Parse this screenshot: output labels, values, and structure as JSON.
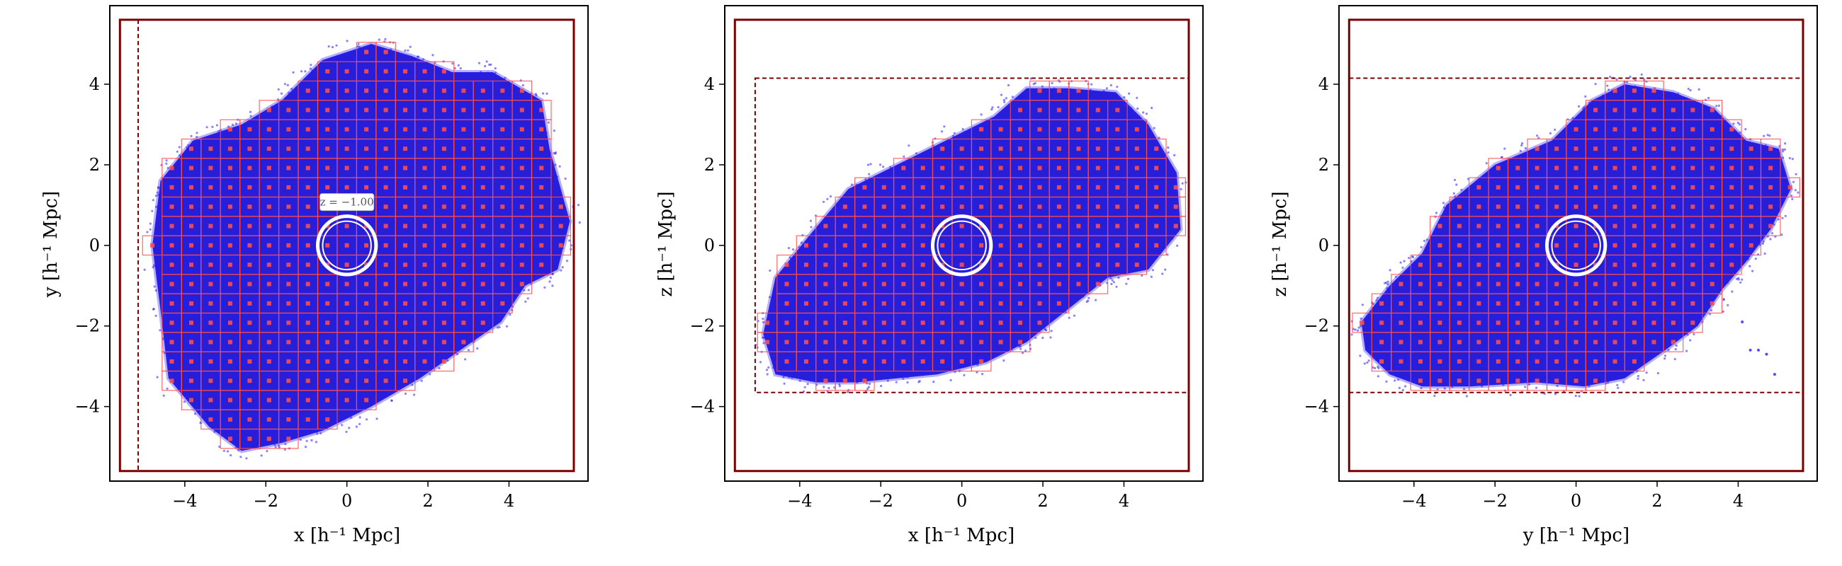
{
  "chart_data": [
    {
      "type": "scatter",
      "xlabel": "x [h⁻¹ Mpc]",
      "ylabel": "y [h⁻¹ Mpc]",
      "xlim": [
        -5.85,
        5.95
      ],
      "ylim": [
        -5.85,
        5.95
      ],
      "xticks": [
        -4,
        -2,
        0,
        2,
        4
      ],
      "yticks": [
        -4,
        -2,
        0,
        2,
        4
      ],
      "xtick_labels": [
        "−4",
        "−2",
        "0",
        "2",
        "4"
      ],
      "ytick_labels": [
        "−4",
        "−2",
        "0",
        "2",
        "4"
      ],
      "outer_box": [
        -5.6,
        5.6,
        -5.6,
        5.6
      ],
      "dashed_line": {
        "orientation": "vertical",
        "at": -5.15
      },
      "circle": {
        "center": [
          0,
          0
        ],
        "radius": 0.72
      },
      "annotation": {
        "text": "z = −1.00",
        "at": [
          0,
          0.9
        ]
      },
      "cloud": {
        "grid_cell": 0.48,
        "outline": [
          [
            -4.6,
            1.6
          ],
          [
            -3.8,
            2.6
          ],
          [
            -2.6,
            3.0
          ],
          [
            -1.6,
            3.6
          ],
          [
            -0.6,
            4.6
          ],
          [
            0.6,
            5.0
          ],
          [
            1.6,
            4.7
          ],
          [
            2.6,
            4.3
          ],
          [
            3.6,
            4.3
          ],
          [
            4.8,
            3.6
          ],
          [
            5.0,
            2.4
          ],
          [
            5.5,
            0.6
          ],
          [
            5.2,
            -0.6
          ],
          [
            4.4,
            -1.0
          ],
          [
            3.8,
            -1.9
          ],
          [
            2.8,
            -2.6
          ],
          [
            1.8,
            -3.3
          ],
          [
            0.6,
            -4.0
          ],
          [
            -0.6,
            -4.6
          ],
          [
            -1.6,
            -4.9
          ],
          [
            -2.6,
            -5.1
          ],
          [
            -3.4,
            -4.5
          ],
          [
            -4.4,
            -3.3
          ],
          [
            -4.6,
            -1.6
          ],
          [
            -4.8,
            0.0
          ]
        ]
      },
      "colors": {
        "frame": "#7a0000",
        "grid": "#ff4d4d",
        "points": "#2a1cff",
        "fill": "#1a12d6"
      }
    },
    {
      "type": "scatter",
      "xlabel": "x [h⁻¹ Mpc]",
      "ylabel": "z [h⁻¹ Mpc]",
      "xlim": [
        -5.85,
        5.95
      ],
      "ylim": [
        -5.85,
        5.95
      ],
      "xticks": [
        -4,
        -2,
        0,
        2,
        4
      ],
      "yticks": [
        -4,
        -2,
        0,
        2,
        4
      ],
      "xtick_labels": [
        "−4",
        "−2",
        "0",
        "2",
        "4"
      ],
      "ytick_labels": [
        "−4",
        "−2",
        "0",
        "2",
        "4"
      ],
      "outer_box": [
        -5.6,
        5.6,
        -5.6,
        5.6
      ],
      "dashed_rect": [
        -5.1,
        5.6,
        -3.65,
        4.15
      ],
      "circle": {
        "center": [
          0,
          0
        ],
        "radius": 0.72
      },
      "cloud": {
        "grid_cell": 0.48,
        "outline": [
          [
            -4.9,
            -2.2
          ],
          [
            -4.6,
            -0.8
          ],
          [
            -3.8,
            0.2
          ],
          [
            -2.8,
            1.4
          ],
          [
            -1.6,
            2.0
          ],
          [
            -0.4,
            2.6
          ],
          [
            0.8,
            3.2
          ],
          [
            1.6,
            3.9
          ],
          [
            2.6,
            3.9
          ],
          [
            3.8,
            3.8
          ],
          [
            4.6,
            3.0
          ],
          [
            5.3,
            1.8
          ],
          [
            5.4,
            0.4
          ],
          [
            4.6,
            -0.6
          ],
          [
            3.6,
            -0.8
          ],
          [
            2.6,
            -1.6
          ],
          [
            1.6,
            -2.4
          ],
          [
            0.6,
            -2.9
          ],
          [
            -0.6,
            -3.2
          ],
          [
            -1.6,
            -3.3
          ],
          [
            -2.6,
            -3.4
          ],
          [
            -3.6,
            -3.4
          ],
          [
            -4.6,
            -3.2
          ]
        ]
      },
      "colors": {
        "frame": "#7a0000",
        "grid": "#ff4d4d",
        "points": "#2a1cff",
        "fill": "#1a12d6"
      }
    },
    {
      "type": "scatter",
      "xlabel": "y [h⁻¹ Mpc]",
      "ylabel": "z [h⁻¹ Mpc]",
      "xlim": [
        -5.85,
        5.95
      ],
      "ylim": [
        -5.85,
        5.95
      ],
      "xticks": [
        -4,
        -2,
        0,
        2,
        4
      ],
      "yticks": [
        -4,
        -2,
        0,
        2,
        4
      ],
      "xtick_labels": [
        "−4",
        "−2",
        "0",
        "2",
        "4"
      ],
      "ytick_labels": [
        "−4",
        "−2",
        "0",
        "2",
        "4"
      ],
      "outer_box": [
        -5.6,
        5.6,
        -5.6,
        5.6
      ],
      "dashed_lines_h": [
        4.15,
        -3.65
      ],
      "circle": {
        "center": [
          0,
          0
        ],
        "radius": 0.72
      },
      "outliers": [
        [
          4.3,
          -2.6
        ],
        [
          4.5,
          -2.6
        ],
        [
          4.7,
          -2.7
        ],
        [
          4.9,
          -3.2
        ],
        [
          4.1,
          -1.9
        ]
      ],
      "cloud": {
        "grid_cell": 0.48,
        "outline": [
          [
            -5.3,
            -1.9
          ],
          [
            -4.6,
            -1.0
          ],
          [
            -3.8,
            -0.2
          ],
          [
            -3.2,
            1.0
          ],
          [
            -2.0,
            2.0
          ],
          [
            -0.6,
            2.6
          ],
          [
            0.4,
            3.6
          ],
          [
            1.2,
            4.0
          ],
          [
            2.4,
            3.8
          ],
          [
            3.4,
            3.4
          ],
          [
            4.2,
            2.6
          ],
          [
            5.0,
            2.4
          ],
          [
            5.3,
            1.4
          ],
          [
            4.8,
            0.4
          ],
          [
            4.2,
            -0.4
          ],
          [
            3.6,
            -1.1
          ],
          [
            3.0,
            -2.0
          ],
          [
            2.2,
            -2.6
          ],
          [
            1.2,
            -3.3
          ],
          [
            0.2,
            -3.5
          ],
          [
            -1.0,
            -3.4
          ],
          [
            -2.6,
            -3.5
          ],
          [
            -3.8,
            -3.5
          ],
          [
            -4.6,
            -3.2
          ],
          [
            -5.2,
            -2.6
          ]
        ]
      },
      "colors": {
        "frame": "#7a0000",
        "grid": "#ff4d4d",
        "points": "#2a1cff",
        "fill": "#1a12d6"
      }
    }
  ]
}
